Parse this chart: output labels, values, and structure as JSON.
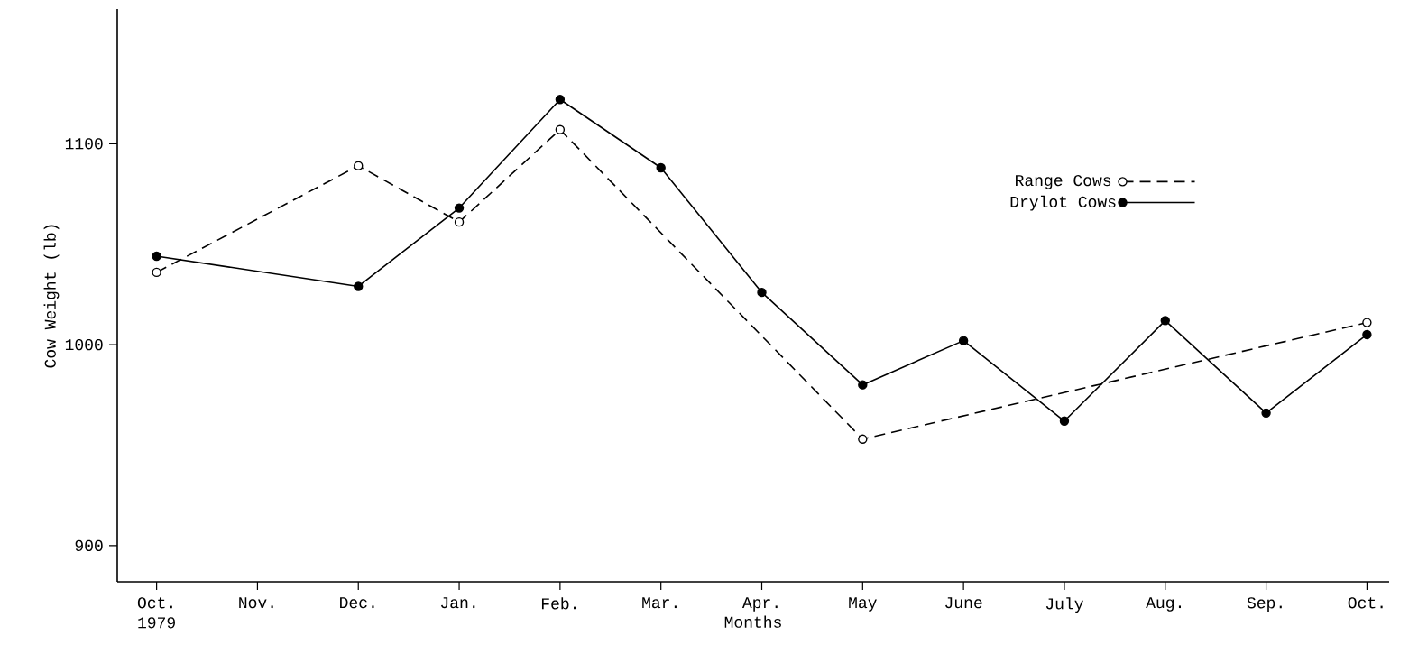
{
  "chart_data": {
    "type": "line",
    "xlabel": "Months",
    "ylabel": "Cow Weight (lb)",
    "categories": [
      "Oct. 1979",
      "Nov.",
      "Dec.",
      "Jan.",
      "Feb.",
      "Mar.",
      "Apr.",
      "May",
      "June",
      "July",
      "Aug.",
      "Sep.",
      "Oct."
    ],
    "series": [
      {
        "name": "Range Cows",
        "color": "#000000",
        "line_style": "dashed",
        "values": [
          1036,
          null,
          1089,
          1061,
          1107,
          null,
          null,
          953,
          null,
          null,
          null,
          null,
          1011
        ]
      },
      {
        "name": "Drylot Cows",
        "color": "#000000",
        "line_style": "solid",
        "values": [
          1044,
          null,
          1029,
          1068,
          1122,
          1088,
          1026,
          980,
          1002,
          962,
          1012,
          966,
          1005
        ]
      }
    ],
    "ylim": [
      882,
      1167
    ],
    "yticks": [
      900,
      1000,
      1100
    ],
    "marker": "circle",
    "legend": "right",
    "grid": false
  }
}
